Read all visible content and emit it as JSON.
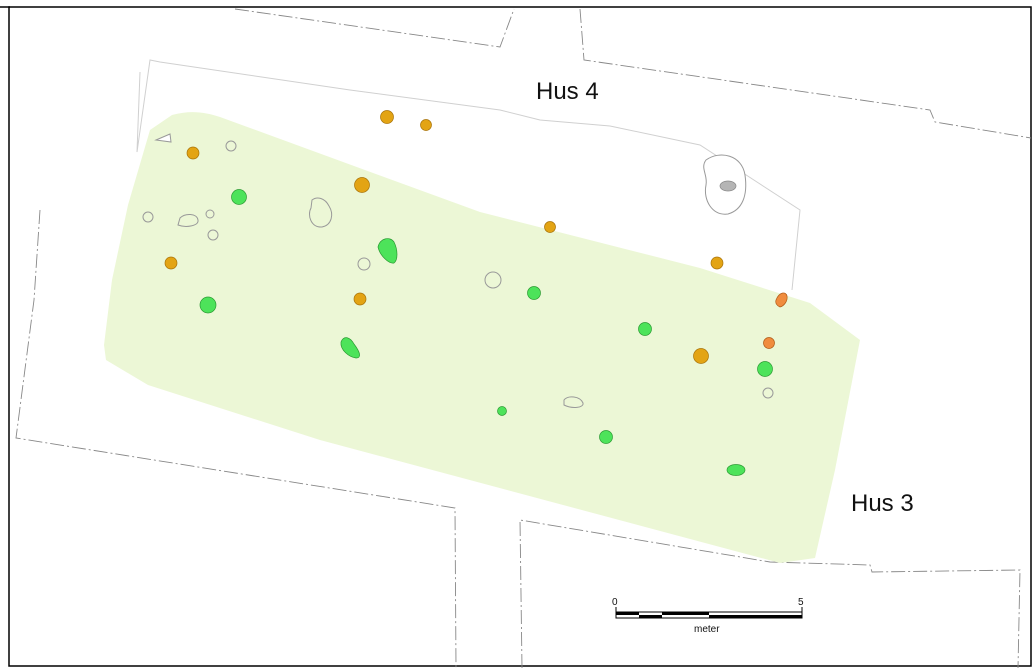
{
  "labels": {
    "house_north": "Hus 4",
    "house_south": "Hus 3"
  },
  "scale_bar": {
    "min_label": "0",
    "max_label": "5",
    "unit": "meter"
  },
  "legend_colors": {
    "house_area": "#ecf7d6",
    "green_posthole": "#4de35a",
    "orange_posthole": "#e3a414",
    "red_orange_feature": "#f08c3e",
    "gray_feature": "#b5b5b5",
    "boundary_lines": "#777777"
  }
}
